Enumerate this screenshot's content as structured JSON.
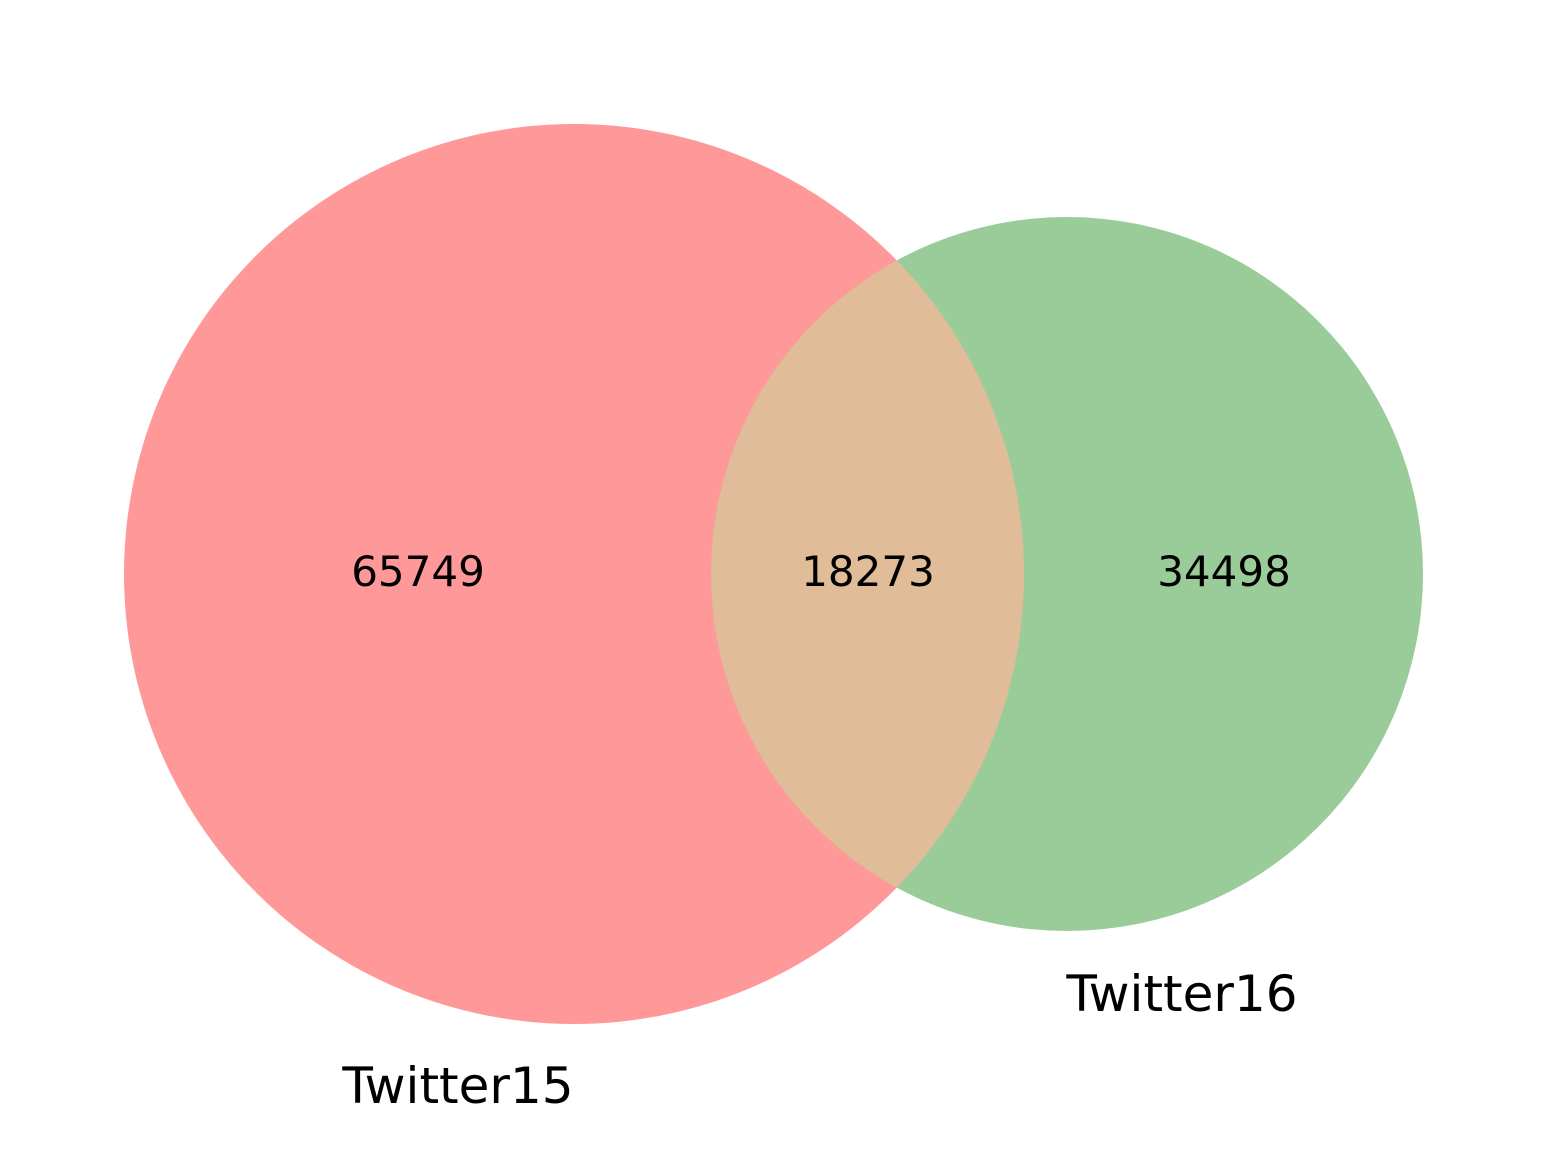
{
  "venn": {
    "sets": [
      {
        "name": "Twitter15",
        "color": "#ff9999"
      },
      {
        "name": "Twitter16",
        "color": "#99cc99"
      }
    ],
    "regions": {
      "only_a": "65749",
      "intersection": "18273",
      "only_b": "34498"
    },
    "intersection_color": "#e0bc99"
  }
}
